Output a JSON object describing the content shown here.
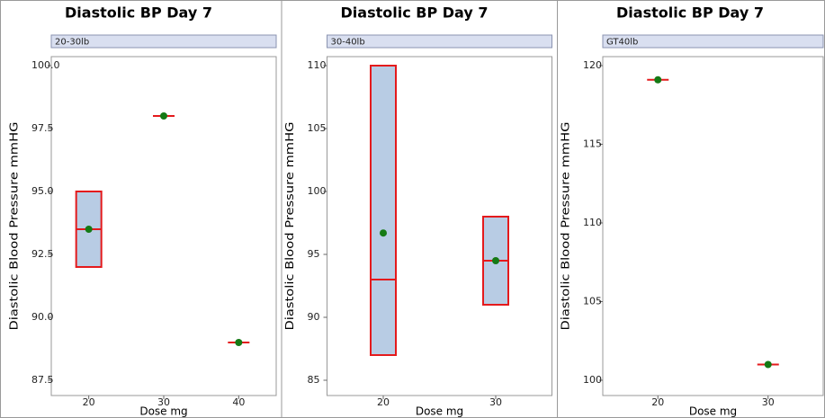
{
  "chart_data": [
    {
      "type": "box",
      "title": "Diastolic BP Day 7",
      "panel_label": "20-30lb",
      "xlabel": "Dose mg",
      "ylabel": "Diastolic Blood Pressure mmHG",
      "categories": [
        "20",
        "30",
        "40"
      ],
      "boxes": [
        {
          "q1": 92,
          "median": 93.5,
          "q3": 95,
          "mean": 93.5
        },
        {
          "q1": 98,
          "median": 98,
          "q3": 98,
          "mean": 98
        },
        {
          "q1": 89,
          "median": 89,
          "q3": 89,
          "mean": 89
        }
      ],
      "ylim": [
        87.5,
        100
      ],
      "yticks": [
        87.5,
        {
          "value": 90,
          "label": "90.0"
        },
        92.5,
        {
          "value": 95,
          "label": "95.0"
        },
        97.5,
        {
          "value": 100,
          "label": "100.0"
        }
      ],
      "box_color": "#b8cce4",
      "edge_color": "#e41a1c",
      "mean_color": "#157a15",
      "grid": false
    },
    {
      "type": "box",
      "title": "Diastolic BP Day 7",
      "panel_label": "30-40lb",
      "xlabel": "Dose mg",
      "ylabel": "Diastolic Blood Pressure mmHG",
      "categories": [
        "20",
        "30"
      ],
      "boxes": [
        {
          "q1": 87,
          "median": 93,
          "q3": 110,
          "mean": 96.7
        },
        {
          "q1": 91,
          "median": 94.5,
          "q3": 98,
          "mean": 94.5
        }
      ],
      "ylim": [
        85,
        110
      ],
      "yticks": [
        85,
        90,
        95,
        100,
        105,
        110
      ],
      "box_color": "#b8cce4",
      "edge_color": "#e41a1c",
      "mean_color": "#157a15",
      "grid": false
    },
    {
      "type": "box",
      "title": "Diastolic BP Day 7",
      "panel_label": "GT40lb",
      "xlabel": "Dose mg",
      "ylabel": "Diastolic Blood Pressure mmHG",
      "categories": [
        "20",
        "30"
      ],
      "boxes": [
        {
          "q1": 119.1,
          "median": 119.1,
          "q3": 119.1,
          "mean": 119.1
        },
        {
          "q1": 101,
          "median": 101,
          "q3": 101,
          "mean": 101
        }
      ],
      "ylim": [
        100,
        120
      ],
      "yticks": [
        100,
        105,
        110,
        115,
        120
      ],
      "box_color": "#b8cce4",
      "edge_color": "#e41a1c",
      "mean_color": "#157a15",
      "grid": false
    }
  ]
}
